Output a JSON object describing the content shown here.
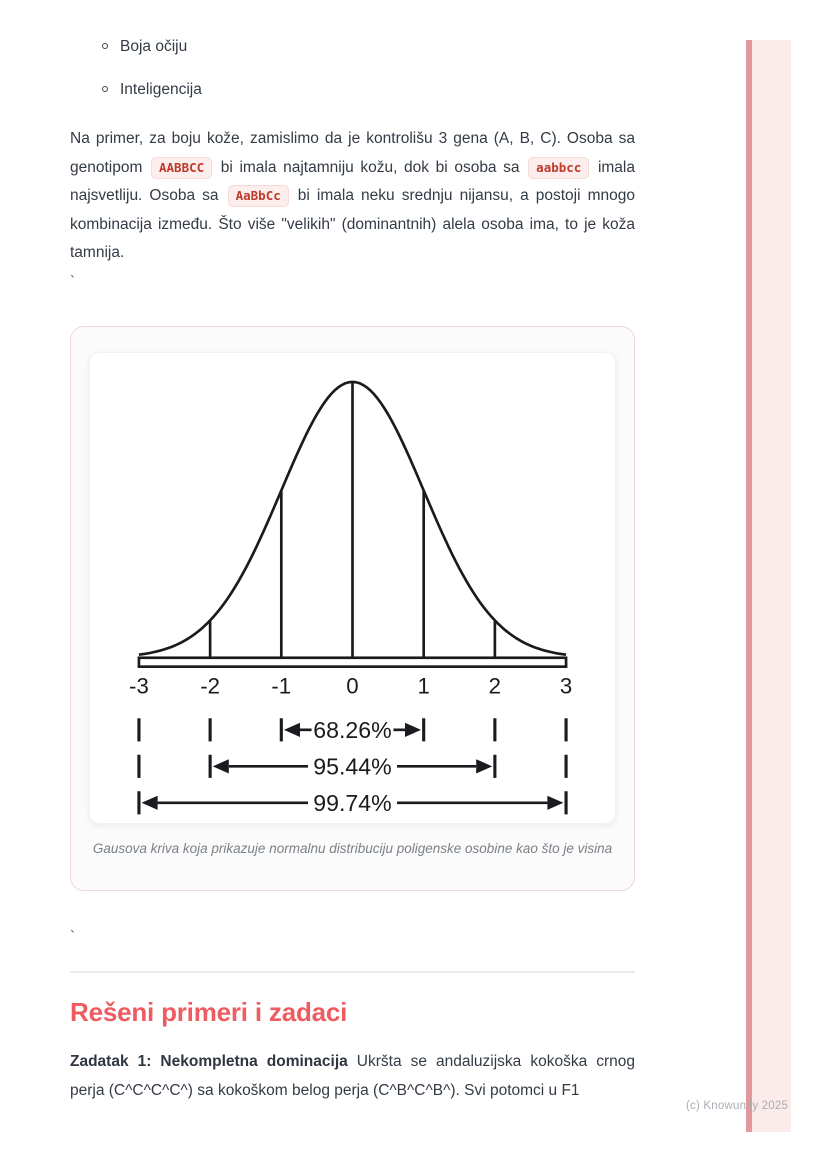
{
  "content": {
    "bullets": [
      "Boja očiju",
      "Inteligencija"
    ],
    "p1": {
      "t1": "Na primer, za boju kože, zamislimo da je kontrolišu 3 gena (A, B, C). Osoba sa genotipom ",
      "code1": "AABBCC",
      "t2": " bi imala najtamniju kožu, dok bi osoba sa ",
      "code2": "aabbcc",
      "t3": " imala najsvetliju. Osoba sa ",
      "code3": "AaBbCc",
      "t4": " bi imala neku srednju nijansu, a postoji mnogo kombinacija između. Što više \"velikih\" (dominantnih) alela osoba ima, to je koža tamnija."
    },
    "backtick": "`",
    "heading": "Rešeni primeri i zadaci",
    "p2": {
      "bold": "Zadatak 1: Nekompletna dominacija",
      "text": " Ukršta se andaluzijska kokoška crnog perja (C^C^C^C^) sa kokoškom belog perja (C^B^C^B^). Svi potomci u F1"
    },
    "copyright": "(c) Knowunity 2025"
  },
  "figure": {
    "caption": "Gausova kriva koja prikazuje normalnu distribuciju poligenske osobine kao što je visina",
    "chart": {
      "type": "area",
      "description": "standard normal distribution bell curve with sigma divisions",
      "x_ticks": [
        "-3",
        "-2",
        "-1",
        "0",
        "1",
        "2",
        "3"
      ],
      "xlim": [
        -3,
        3
      ],
      "sigma_lines": [
        -2,
        -1,
        0,
        1,
        2
      ],
      "annotations": [
        {
          "label": "68.26%",
          "from": -1,
          "to": 1
        },
        {
          "label": "95.44%",
          "from": -2,
          "to": 2
        },
        {
          "label": "99.74%",
          "from": -3,
          "to": 3
        }
      ]
    }
  },
  "colors": {
    "accent_heading": "#ee5b60",
    "code_text": "#c0392b",
    "code_bg": "#fdeeee",
    "card_border": "#f3d4d8",
    "edge_line": "#e2999d",
    "edge_band": "#fcebeb"
  }
}
